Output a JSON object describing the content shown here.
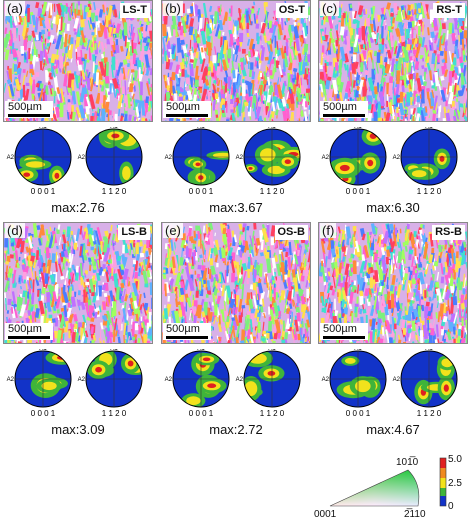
{
  "panels": [
    {
      "letter": "(a)",
      "tag": "LS-T",
      "scale": "500µm",
      "max": "max:2.76",
      "axis_a1": "A1",
      "axis_a2": "A2",
      "pf1": "0 0 0 1",
      "pf2": "1 1 2 0"
    },
    {
      "letter": "(b)",
      "tag": "OS-T",
      "scale": "500µm",
      "max": "max:3.67",
      "axis_a1": "A1",
      "axis_a2": "A2",
      "pf1": "0 0 0 1",
      "pf2": "1 1 2 0"
    },
    {
      "letter": "(c)",
      "tag": "RS-T",
      "scale": "500µm",
      "max": "max:6.30",
      "axis_a1": "A1",
      "axis_a2": "A2",
      "pf1": "0 0 0 1",
      "pf2": "1 1 2 0"
    },
    {
      "letter": "(d)",
      "tag": "LS-B",
      "scale": "500µm",
      "max": "max:3.09",
      "axis_a1": "A1",
      "axis_a2": "A2",
      "pf1": "0 0 0 1",
      "pf2": "1 1 2 0"
    },
    {
      "letter": "(e)",
      "tag": "OS-B",
      "scale": "500µm",
      "max": "max:2.72",
      "axis_a1": "A1",
      "axis_a2": "A2",
      "pf1": "0 0 0 1",
      "pf2": "1 1 2 0"
    },
    {
      "letter": "(f)",
      "tag": "RS-B",
      "scale": "500µm",
      "max": "max:4.67",
      "axis_a1": "A1",
      "axis_a2": "A2",
      "pf1": "0 0 0 1",
      "pf2": "1 1 2 0"
    }
  ],
  "legend": {
    "ipf_top": "101̅0",
    "ipf_left": "0001",
    "ipf_right": "2̅110",
    "colorbar_ticks": [
      "5.0",
      "2.5",
      "0"
    ]
  },
  "colors": {
    "pf_blue": "#1233c8",
    "pf_green": "#3fb43a",
    "pf_yellow": "#f2e21c",
    "pf_red": "#e02020"
  }
}
